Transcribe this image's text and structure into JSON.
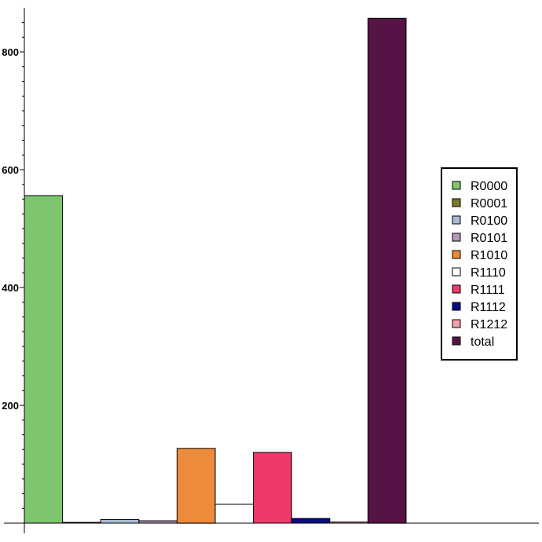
{
  "chart_data": {
    "type": "bar",
    "categories": [
      "R0000",
      "R0001",
      "R0100",
      "R0101",
      "R1010",
      "R1110",
      "R1111",
      "R1112",
      "R1212",
      "total"
    ],
    "values": [
      556,
      1,
      6,
      4,
      127,
      32,
      120,
      8,
      2,
      857
    ],
    "colors": [
      "#7fc46f",
      "#7a7a2a",
      "#a8bcd1",
      "#b596b5",
      "#ec8c3b",
      "#ffffff",
      "#f0396b",
      "#0a0a82",
      "#f5a0a8",
      "#561446"
    ],
    "ylim": [
      0,
      870
    ],
    "yticks": [
      200,
      400,
      600,
      800
    ],
    "legend": {
      "position": "right",
      "entries": [
        "R0000",
        "R0001",
        "R0100",
        "R0101",
        "R1010",
        "R1110",
        "R1111",
        "R1112",
        "R1212",
        "total"
      ]
    },
    "grid": false,
    "title": "",
    "xlabel": "",
    "ylabel": ""
  }
}
